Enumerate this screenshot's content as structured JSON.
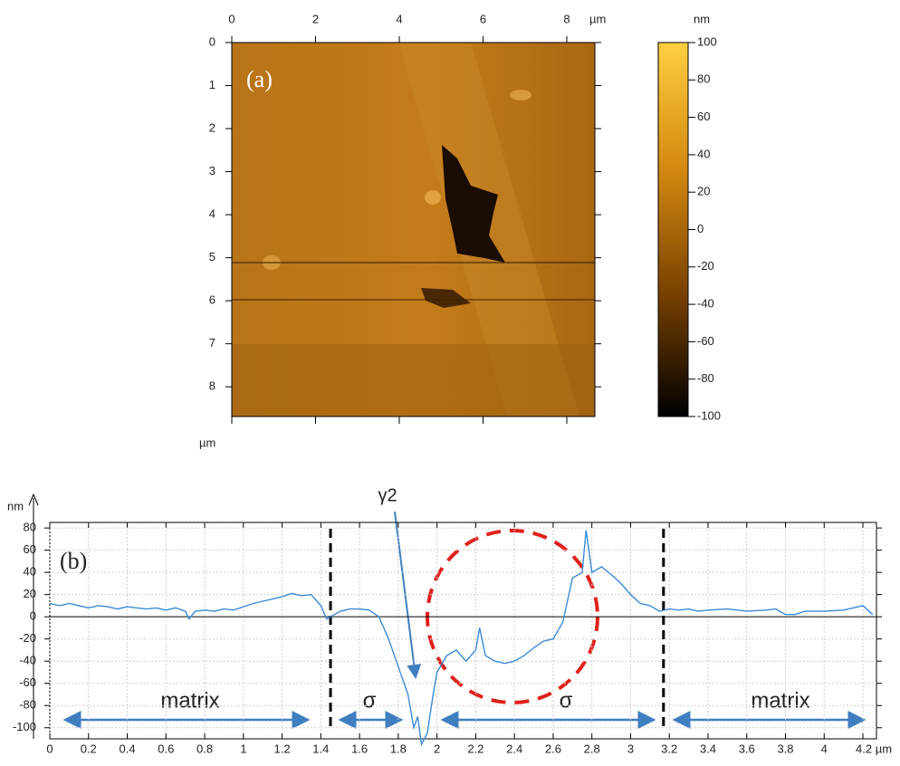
{
  "chart_data": [
    {
      "type": "image",
      "label": "(a)",
      "xlabel": "µm",
      "ylabel": "µm",
      "xlim": [
        0,
        8.67
      ],
      "xticks": [
        0,
        2,
        4,
        6,
        8
      ],
      "ylim": [
        0,
        8.69
      ],
      "yticks": [
        0,
        1,
        2,
        3,
        4,
        5,
        6,
        7,
        8
      ],
      "colorbar": {
        "label": "nm",
        "lim": [
          -100,
          100
        ],
        "ticks": [
          100,
          80,
          60,
          40,
          20,
          0,
          -20,
          -40,
          -60,
          -80,
          -100
        ],
        "colors": [
          "#000000",
          "#7a4200",
          "#d58a10",
          "#ffcf40"
        ]
      }
    },
    {
      "type": "line",
      "label": "(b)",
      "ylabel": "nm",
      "color": "#3a8ad6",
      "grid": true,
      "xlim": [
        0,
        4.27
      ],
      "ylim": [
        -110,
        85
      ],
      "xticks": [
        0,
        0.2,
        0.4,
        0.6,
        0.8,
        1,
        1.2,
        1.4,
        1.6,
        1.8,
        2,
        2.2,
        2.4,
        2.6,
        2.8,
        3,
        3.2,
        3.4,
        3.6,
        3.8,
        4,
        {
          "value": 4.2,
          "label": "4.2 µm"
        }
      ],
      "yticks": [
        80,
        60,
        40,
        20,
        0,
        -20,
        -40,
        -60,
        -80,
        -100
      ],
      "vlines": [
        1.45,
        3.17
      ],
      "annotations": [
        "γ2",
        "matrix",
        "σ",
        "σ",
        "matrix"
      ],
      "x": [
        0,
        0.05,
        0.1,
        0.15,
        0.2,
        0.25,
        0.3,
        0.35,
        0.4,
        0.45,
        0.5,
        0.55,
        0.6,
        0.65,
        0.7,
        0.72,
        0.75,
        0.8,
        0.85,
        0.9,
        0.95,
        1.0,
        1.05,
        1.1,
        1.15,
        1.2,
        1.25,
        1.3,
        1.35,
        1.4,
        1.43,
        1.45,
        1.5,
        1.55,
        1.6,
        1.65,
        1.7,
        1.75,
        1.8,
        1.85,
        1.88,
        1.9,
        1.92,
        1.95,
        1.98,
        2.0,
        2.05,
        2.1,
        2.15,
        2.2,
        2.22,
        2.25,
        2.3,
        2.35,
        2.4,
        2.45,
        2.5,
        2.55,
        2.6,
        2.65,
        2.7,
        2.75,
        2.77,
        2.8,
        2.85,
        2.9,
        2.95,
        3.0,
        3.05,
        3.1,
        3.15,
        3.2,
        3.25,
        3.3,
        3.35,
        3.4,
        3.5,
        3.6,
        3.7,
        3.75,
        3.8,
        3.85,
        3.9,
        4.0,
        4.1,
        4.2,
        4.25
      ],
      "values": [
        12,
        10,
        12,
        10,
        8,
        10,
        9,
        7,
        9,
        8,
        7,
        8,
        6,
        8,
        5,
        -2,
        5,
        6,
        5,
        7,
        6,
        9,
        12,
        14,
        16,
        18,
        21,
        19,
        20,
        10,
        -2,
        0,
        5,
        7,
        7,
        6,
        0,
        -20,
        -45,
        -70,
        -100,
        -90,
        -115,
        -105,
        -70,
        -50,
        -35,
        -30,
        -40,
        -30,
        -10,
        -35,
        -40,
        -42,
        -40,
        -35,
        -28,
        -22,
        -20,
        -5,
        35,
        40,
        78,
        40,
        45,
        38,
        30,
        20,
        12,
        10,
        5,
        7,
        6,
        7,
        5,
        6,
        7,
        5,
        6,
        7,
        2,
        2,
        5,
        5,
        6,
        10,
        2
      ]
    }
  ]
}
